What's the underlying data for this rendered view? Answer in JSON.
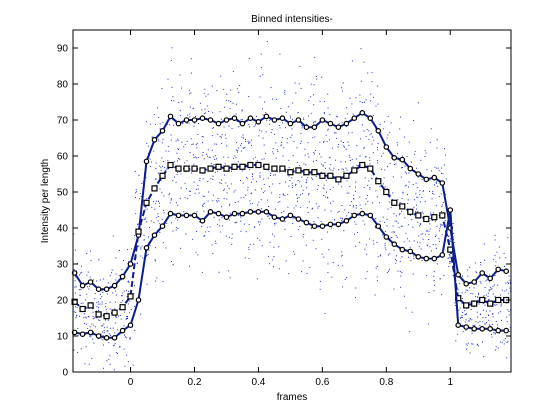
{
  "chart_data": {
    "type": "line",
    "title": "Binned intensities-",
    "xlabel": "frames",
    "ylabel": "Intensity per length",
    "xlim": [
      -0.18,
      1.19
    ],
    "ylim": [
      0,
      95
    ],
    "xticks": [
      0,
      0.2,
      0.4,
      0.6,
      0.8,
      1
    ],
    "xtick_labels": [
      "0",
      "0.2",
      "0.4",
      "0.6",
      "0.8",
      "1"
    ],
    "yticks": [
      0,
      10,
      20,
      30,
      40,
      50,
      60,
      70,
      80,
      90
    ],
    "ytick_labels": [
      "0",
      "10",
      "20",
      "30",
      "40",
      "50",
      "60",
      "70",
      "80",
      "90"
    ],
    "grid": false,
    "legend": "none",
    "colors": {
      "line": "#0b1d8c",
      "marker": "#000000",
      "scatter": "#1f2fd0",
      "axes": "#000000"
    },
    "x": [
      -0.175,
      -0.15,
      -0.125,
      -0.1,
      -0.075,
      -0.05,
      -0.025,
      0,
      0.025,
      0.05,
      0.075,
      0.1,
      0.125,
      0.15,
      0.175,
      0.2,
      0.225,
      0.25,
      0.275,
      0.3,
      0.325,
      0.35,
      0.375,
      0.4,
      0.425,
      0.45,
      0.475,
      0.5,
      0.525,
      0.55,
      0.575,
      0.6,
      0.625,
      0.65,
      0.675,
      0.7,
      0.725,
      0.75,
      0.775,
      0.8,
      0.825,
      0.85,
      0.875,
      0.9,
      0.925,
      0.95,
      0.975,
      1.0,
      1.025,
      1.05,
      1.075,
      1.1,
      1.125,
      1.15,
      1.175
    ],
    "series": [
      {
        "role": "upper",
        "marker": "circle",
        "values": [
          27.5,
          24,
          25,
          23,
          23,
          24,
          26.5,
          30,
          38,
          58.5,
          64.5,
          67,
          71,
          69,
          70,
          70,
          70.5,
          70,
          69,
          70,
          70.5,
          69,
          70.5,
          69.5,
          71,
          70,
          70.5,
          69,
          70,
          68,
          68,
          70,
          69,
          68,
          69,
          70.5,
          72,
          70.5,
          67,
          62.5,
          59.5,
          59,
          56.5,
          55,
          53.5,
          54,
          52.5,
          40,
          27,
          24.5,
          25,
          27.5,
          26,
          28.5,
          28
        ]
      },
      {
        "role": "mean",
        "marker": "square",
        "values": [
          19.5,
          17.5,
          18.5,
          16,
          15.5,
          16.5,
          18,
          21,
          39,
          47,
          51,
          54.5,
          57.5,
          56.5,
          56.5,
          56.5,
          56,
          56.5,
          57,
          56.5,
          57,
          57,
          57.5,
          57.5,
          57,
          56.5,
          56.5,
          55.5,
          56,
          55.5,
          55.5,
          54.5,
          54.5,
          53.5,
          54.5,
          56,
          57.5,
          56.5,
          53,
          50,
          47,
          46,
          44.5,
          43.5,
          42.5,
          43,
          43.5,
          34,
          20.5,
          18.5,
          19,
          20,
          19,
          20,
          20
        ]
      },
      {
        "role": "lower",
        "marker": "circle",
        "values": [
          11,
          10.5,
          11,
          10,
          9.5,
          9.5,
          11.5,
          13,
          20,
          34.5,
          38,
          40.5,
          44,
          43.5,
          43.5,
          43.5,
          42,
          44.5,
          44,
          43,
          44,
          44,
          44.5,
          44.5,
          44.5,
          43,
          42.5,
          43.5,
          42.5,
          41.5,
          40.5,
          40.5,
          41,
          41,
          42,
          43.5,
          44,
          43.5,
          40.5,
          37.5,
          35.5,
          34,
          33.5,
          32,
          31.5,
          31.5,
          32.5,
          45,
          13,
          12.5,
          12,
          12,
          12,
          11.5,
          11.5
        ]
      }
    ]
  }
}
